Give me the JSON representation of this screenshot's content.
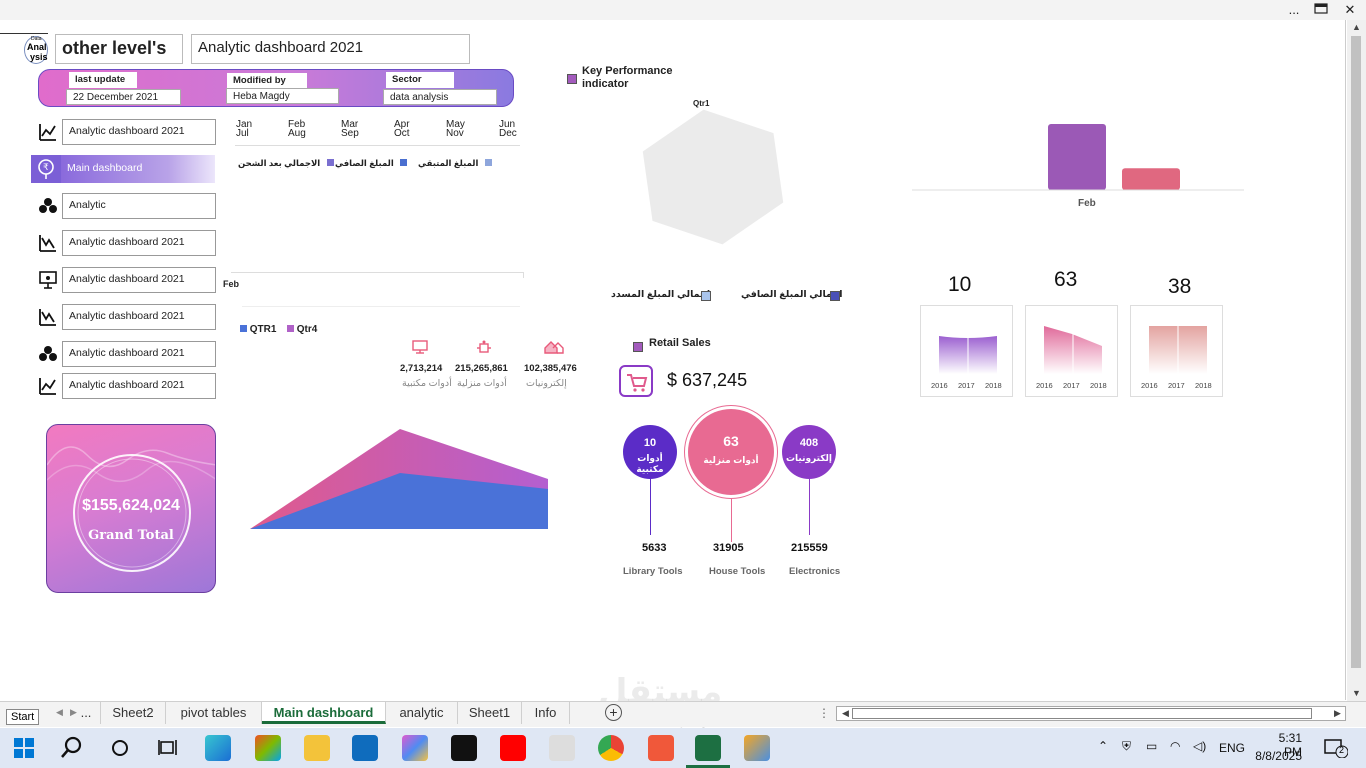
{
  "window": {
    "menu_label": "...",
    "close_label": "✕"
  },
  "header": {
    "logo_text_1": "Data",
    "logo_text_2": "Anal",
    "logo_text_3": "ysis",
    "title": "other level's",
    "subtitle": "Analytic dashboard 2021"
  },
  "info_bar": {
    "last_update_label": "last update",
    "last_update_value": "22 December 2021",
    "modified_by_label": "Modified by",
    "modified_by_value": "Heba Magdy",
    "sector_label": "Sector",
    "sector_value": "data analysis"
  },
  "nav": {
    "items": [
      {
        "label": "Analytic dashboard 2021",
        "icon": "line-chart-icon"
      },
      {
        "label": "Main dashboard",
        "icon": "rupee-search-icon"
      },
      {
        "label": "Analytic",
        "icon": "people-group-icon"
      },
      {
        "label": "Analytic dashboard 2021",
        "icon": "trend-down-icon"
      },
      {
        "label": "Analytic dashboard 2021",
        "icon": "presentation-board-icon"
      },
      {
        "label": "Analytic dashboard 2021",
        "icon": "trend-down-icon"
      },
      {
        "label": "Analytic dashboard 2021",
        "icon": "people-group-icon"
      },
      {
        "label": "Analytic dashboard 2021",
        "icon": "line-chart-icon"
      }
    ]
  },
  "grand_total": {
    "value": "$155,624,024",
    "label": "Grand Total"
  },
  "month_chart": {
    "months_top": [
      "Jan",
      "Feb",
      "Mar",
      "Apr",
      "May",
      "Jun"
    ],
    "months_bottom": [
      "Jul",
      "Aug",
      "Sep",
      "Oct",
      "Nov",
      "Dec"
    ],
    "legend": [
      "الاجمالي بعد الشحن",
      "المبلغ الصافي",
      "المبلغ المتبقي"
    ]
  },
  "feb_label": "Feb",
  "qtr_legend": [
    "QTR1",
    "Qtr4"
  ],
  "categories_stats": [
    {
      "value": "2,713,214",
      "label": "أدوات مكتبية",
      "icon": "monitor-icon"
    },
    {
      "value": "215,265,861",
      "label": "أدوات منزلية",
      "icon": "robot-icon"
    },
    {
      "value": "102,385,476",
      "label": "إلكترونيات",
      "icon": "house-icon"
    }
  ],
  "kpi": {
    "title_line1": "Key Performance",
    "title_line2": "indicator",
    "axis_label": "Qtr1"
  },
  "kpi_legend": [
    "اجمالي المبلغ الصافي",
    "اجمالي المبلغ المسدد"
  ],
  "feb_bar_chart": {
    "chart_data": {
      "type": "bar",
      "categories": [
        "Feb"
      ],
      "series": [
        {
          "values": [
            100
          ]
        },
        {
          "values": [
            33
          ]
        }
      ]
    },
    "colors": [
      "#9b59b6",
      "#e06880"
    ]
  },
  "year_cards": [
    {
      "number": "10",
      "years": [
        "2016",
        "2017",
        "2018"
      ],
      "color": "#9b5fd0"
    },
    {
      "number": "63",
      "years": [
        "2016",
        "2017",
        "2018"
      ],
      "color": "#e06a9a"
    },
    {
      "number": "38",
      "years": [
        "2016",
        "2017",
        "2018"
      ],
      "color": "#e3a3a0"
    }
  ],
  "retail": {
    "title": "Retail Sales",
    "amount": "$ 637,245"
  },
  "bubbles": [
    {
      "value": "10",
      "label": "أدوات مكتبية",
      "count": "5633",
      "name": "Library Tools",
      "color": "#5b2cc7"
    },
    {
      "value": "63",
      "label": "أدوات منزلية",
      "count": "31905",
      "name": "House Tools",
      "color": "#e86a92"
    },
    {
      "value": "408",
      "label": "إلكترونيات",
      "count": "215559",
      "name": "Electronics",
      "color": "#8a3ac6"
    }
  ],
  "tabs": [
    "...",
    "Sheet2",
    "pivot tables",
    "Main dashboard",
    "analytic",
    "Sheet1",
    "Info"
  ],
  "start_tooltip": "Start",
  "tray": {
    "lang": "ENG",
    "time": "5:31 PM",
    "date": "8/8/2025",
    "notif": "2"
  }
}
